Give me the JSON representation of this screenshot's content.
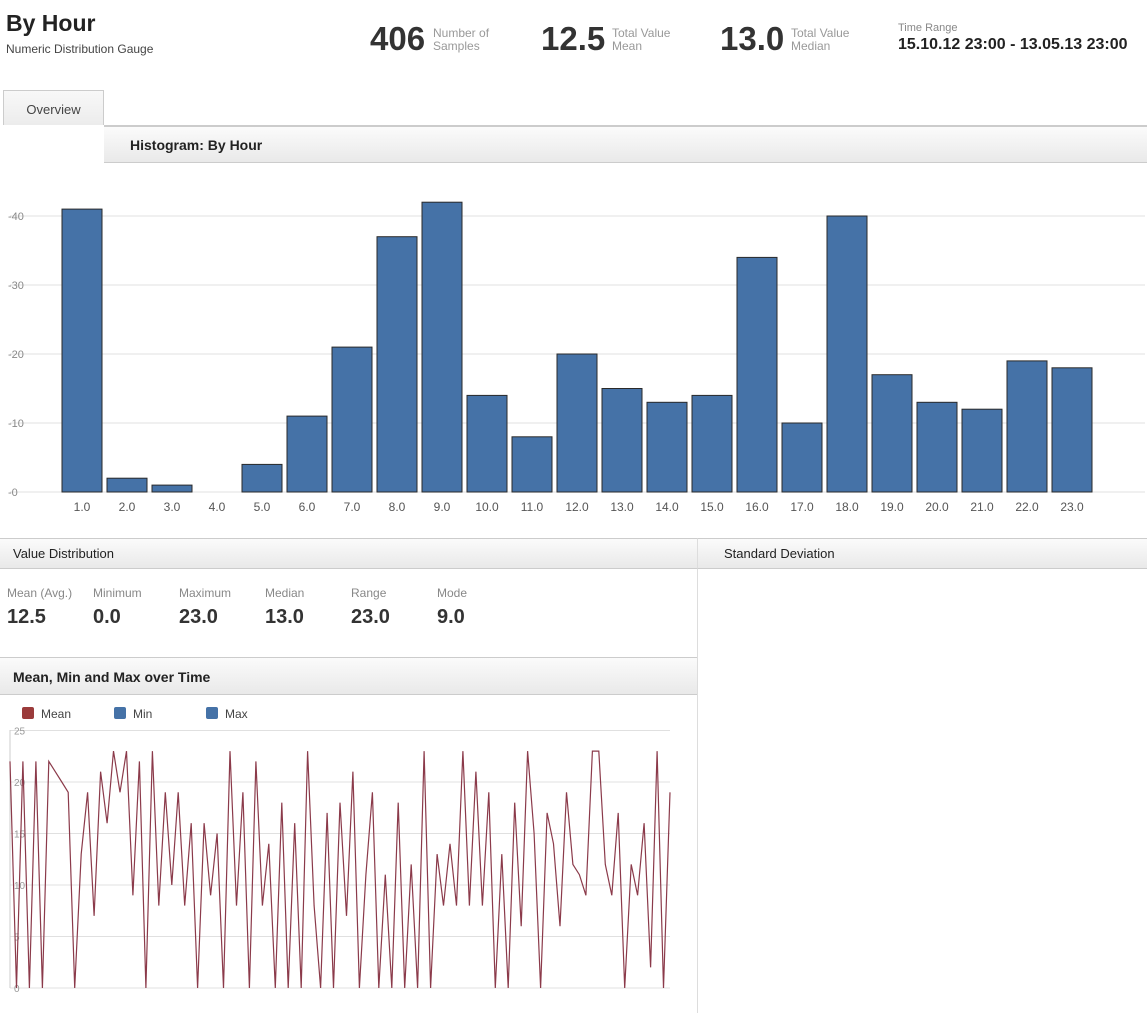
{
  "header": {
    "title": "By Hour",
    "subtitle": "Numeric Distribution Gauge",
    "stats": [
      {
        "value": "406",
        "label1": "Number of",
        "label2": "Samples"
      },
      {
        "value": "12.5",
        "label1": "Total Value",
        "label2": "Mean"
      },
      {
        "value": "13.0",
        "label1": "Total Value",
        "label2": "Median"
      }
    ],
    "time_range_label": "Time Range",
    "time_range_value": "15.10.12 23:00 - 13.05.13 23:00"
  },
  "tabs": [
    {
      "label": "Overview"
    }
  ],
  "histogram": {
    "header": "Histogram: By Hour"
  },
  "value_distribution": {
    "header": "Value Distribution",
    "items": [
      {
        "label": "Mean (Avg.)",
        "value": "12.5"
      },
      {
        "label": "Minimum",
        "value": "0.0"
      },
      {
        "label": "Maximum",
        "value": "23.0"
      },
      {
        "label": "Median",
        "value": "13.0"
      },
      {
        "label": "Range",
        "value": "23.0"
      },
      {
        "label": "Mode",
        "value": "9.0"
      }
    ]
  },
  "std_dev": {
    "header": "Standard Deviation"
  },
  "mean_min_max": {
    "header": "Mean, Min and Max over Time",
    "legend": [
      {
        "label": "Mean",
        "color": "#9b3b3b"
      },
      {
        "label": "Min",
        "color": "#4572a7"
      },
      {
        "label": "Max",
        "color": "#4572a7"
      }
    ]
  },
  "chart_data": [
    {
      "type": "bar",
      "title": "Histogram: By Hour",
      "categories": [
        "1.0",
        "2.0",
        "3.0",
        "4.0",
        "5.0",
        "6.0",
        "7.0",
        "8.0",
        "9.0",
        "10.0",
        "11.0",
        "12.0",
        "13.0",
        "14.0",
        "15.0",
        "16.0",
        "17.0",
        "18.0",
        "19.0",
        "20.0",
        "21.0",
        "22.0",
        "23.0"
      ],
      "values": [
        41,
        2,
        1,
        0,
        4,
        11,
        21,
        37,
        42,
        14,
        8,
        20,
        15,
        13,
        14,
        34,
        10,
        40,
        17,
        13,
        12,
        19,
        18
      ],
      "yticks": [
        "0",
        "10",
        "20",
        "30",
        "40"
      ],
      "ylim": [
        0,
        45
      ],
      "grid": true,
      "bar_color": "#4572a7"
    },
    {
      "type": "line",
      "title": "Mean, Min and Max over Time",
      "series": [
        {
          "name": "Mean",
          "color": "#8b3a4a",
          "values": [
            22,
            0,
            22,
            0,
            22,
            0,
            22,
            21,
            20,
            19,
            0,
            13,
            19,
            7,
            21,
            16,
            23,
            19,
            23,
            9,
            22,
            0,
            23,
            8,
            19,
            10,
            19,
            8,
            16,
            0,
            16,
            9,
            15,
            0,
            23,
            8,
            19,
            0,
            22,
            8,
            14,
            0,
            18,
            0,
            16,
            0,
            23,
            8,
            0,
            17,
            0,
            18,
            7,
            21,
            0,
            11,
            19,
            0,
            11,
            0,
            18,
            0,
            12,
            0,
            23,
            0,
            13,
            8,
            14,
            8,
            23,
            8,
            21,
            8,
            19,
            0,
            13,
            0,
            18,
            6,
            23,
            15,
            0,
            17,
            14,
            6,
            19,
            12,
            11,
            9,
            23,
            23,
            12,
            9,
            17,
            0,
            12,
            9,
            16,
            2,
            23,
            0,
            19
          ]
        },
        {
          "name": "Min",
          "color": "#4572a7",
          "values": []
        },
        {
          "name": "Max",
          "color": "#4572a7",
          "values": []
        }
      ],
      "yticks": [
        "0",
        "5",
        "10",
        "15",
        "20",
        "25"
      ],
      "ylim": [
        0,
        25
      ],
      "grid": true
    }
  ]
}
